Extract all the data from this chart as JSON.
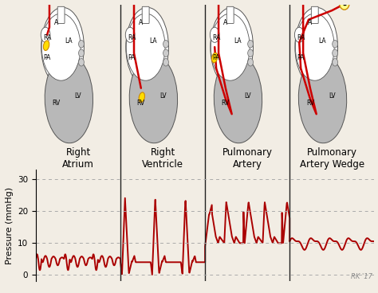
{
  "ylabel": "Pressure (mmHg)",
  "ylim": [
    -2,
    33
  ],
  "yticks": [
    0,
    10,
    20,
    30
  ],
  "bg_color": "#f2ede4",
  "line_color": "#aa0000",
  "grid_color": "#aaaaaa",
  "divider_color": "#222222",
  "section_labels": [
    "Right\nAtrium",
    "Right\nVentricle",
    "Pulmonary\nArtery",
    "Pulmonary\nArtery Wedge"
  ],
  "label_fontsize": 8.5,
  "rk_text": "RK '17"
}
